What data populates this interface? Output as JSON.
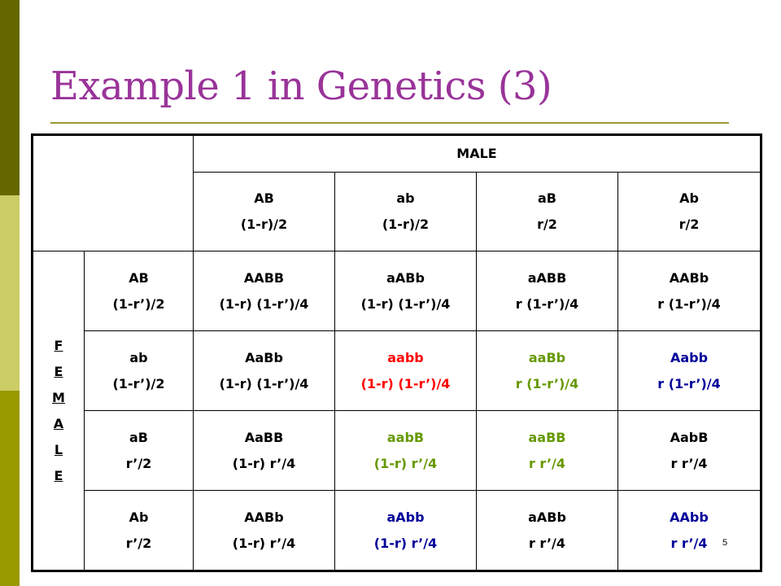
{
  "slide": {
    "title": "Example 1 in Genetics (3)",
    "page_number": "5"
  },
  "colors": {
    "title": "#993399",
    "red": "#ff0000",
    "green": "#669900",
    "blue": "#000099",
    "black": "#000000"
  },
  "table": {
    "male_label": "MALE",
    "female_letters": [
      "F",
      "E",
      "M",
      "A",
      "L",
      "E"
    ],
    "male_gametes": [
      {
        "genotype": "AB",
        "prob": "(1-r)/2"
      },
      {
        "genotype": "ab",
        "prob": "(1-r)/2"
      },
      {
        "genotype": "aB",
        "prob": "r/2"
      },
      {
        "genotype": "Ab",
        "prob": "r/2"
      }
    ],
    "rows": [
      {
        "gamete": {
          "genotype": "AB",
          "prob": "(1-r’)/2"
        },
        "cells": [
          {
            "genotype": "AABB",
            "prob": "(1-r) (1-r’)/4",
            "color": "#000000"
          },
          {
            "genotype": "aABb",
            "prob": "(1-r) (1-r’)/4",
            "color": "#000000"
          },
          {
            "genotype": "aABB",
            "prob": "r (1-r’)/4",
            "color": "#000000"
          },
          {
            "genotype": "AABb",
            "prob": "r (1-r’)/4",
            "color": "#000000"
          }
        ]
      },
      {
        "gamete": {
          "genotype": "ab",
          "prob": "(1-r’)/2"
        },
        "cells": [
          {
            "genotype": "AaBb",
            "prob": "(1-r) (1-r’)/4",
            "color": "#000000"
          },
          {
            "genotype": "aabb",
            "prob": "(1-r) (1-r’)/4",
            "color": "#ff0000"
          },
          {
            "genotype": "aaBb",
            "prob": "r (1-r’)/4",
            "color": "#669900"
          },
          {
            "genotype": "Aabb",
            "prob": "r (1-r’)/4",
            "color": "#000099"
          }
        ]
      },
      {
        "gamete": {
          "genotype": "aB",
          "prob": "r’/2"
        },
        "cells": [
          {
            "genotype": "AaBB",
            "prob": "(1-r) r’/4",
            "color": "#000000"
          },
          {
            "genotype": "aabB",
            "prob": "(1-r) r’/4",
            "color": "#669900"
          },
          {
            "genotype": "aaBB",
            "prob": "r r’/4",
            "color": "#669900"
          },
          {
            "genotype": "AabB",
            "prob": "r r’/4",
            "color": "#000000"
          }
        ]
      },
      {
        "gamete": {
          "genotype": "Ab",
          "prob": "r’/2"
        },
        "cells": [
          {
            "genotype": "AABb",
            "prob": "(1-r) r’/4",
            "color": "#000000"
          },
          {
            "genotype": "aAbb",
            "prob": "(1-r) r’/4",
            "color": "#000099"
          },
          {
            "genotype": "aABb",
            "prob": "r r’/4",
            "color": "#000000"
          },
          {
            "genotype": "AAbb",
            "prob": "r r’/4",
            "color": "#000099"
          }
        ]
      }
    ]
  }
}
